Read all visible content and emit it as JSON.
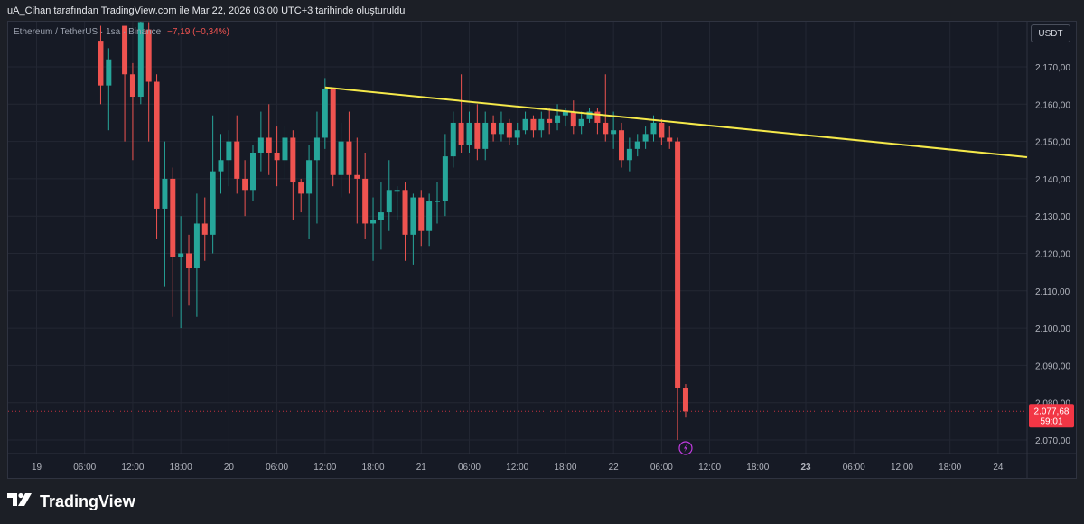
{
  "header": {
    "caption": "uA_Cihan tarafından TradingView.com ile Mar 22, 2026 03:00 UTC+3 tarihinde oluşturuldu"
  },
  "legend": {
    "symbol": "Ethereum / TetherUS · 1sa · Binance",
    "change": "−7,19 (−0,34%)"
  },
  "currency_label": "USDT",
  "price_badge": {
    "price": "2.077,68",
    "countdown": "59:01",
    "color": "#f23645"
  },
  "footer": {
    "brand": "TradingView"
  },
  "colors": {
    "up": "#26a69a",
    "down": "#ef5350",
    "trendline": "#f5e94a",
    "background": "#161a25",
    "grid": "#232733"
  },
  "icons": {
    "alert": "lightning-bolt-icon"
  },
  "chart_data": {
    "type": "candlestick",
    "title": "",
    "ylim": [
      2066,
      2181
    ],
    "y_ticks": [
      "2.170,00",
      "2.160,00",
      "2.150,00",
      "2.140,00",
      "2.130,00",
      "2.120,00",
      "2.110,00",
      "2.100,00",
      "2.090,00",
      "2.080,00",
      "2.070,00"
    ],
    "y_tick_values": [
      2170,
      2160,
      2150,
      2140,
      2130,
      2120,
      2110,
      2100,
      2090,
      2080,
      2070
    ],
    "x_ticks": [
      "19",
      "06:00",
      "12:00",
      "18:00",
      "20",
      "06:00",
      "12:00",
      "18:00",
      "21",
      "06:00",
      "12:00",
      "18:00",
      "22",
      "06:00",
      "12:00",
      "18:00",
      "23",
      "06:00",
      "12:00",
      "18:00",
      "24"
    ],
    "x_tick_hours": [
      0,
      6,
      12,
      18,
      24,
      30,
      36,
      42,
      48,
      54,
      60,
      66,
      72,
      78,
      84,
      90,
      96,
      102,
      108,
      114,
      120
    ],
    "x_tick_bold": [
      "23"
    ],
    "candles": [
      {
        "h": 8,
        "o": 2177,
        "c": 2165,
        "hi": 2181,
        "lo": 2160
      },
      {
        "h": 9,
        "o": 2165,
        "c": 2172,
        "hi": 2175,
        "lo": 2153
      },
      {
        "h": 11,
        "o": 2181,
        "c": 2168,
        "hi": 2181,
        "lo": 2150
      },
      {
        "h": 12,
        "o": 2168,
        "c": 2162,
        "hi": 2171,
        "lo": 2145
      },
      {
        "h": 13,
        "o": 2162,
        "c": 2182,
        "hi": 2184,
        "lo": 2160
      },
      {
        "h": 14,
        "o": 2180,
        "c": 2166,
        "hi": 2182,
        "lo": 2150
      },
      {
        "h": 15,
        "o": 2166,
        "c": 2132,
        "hi": 2168,
        "lo": 2124
      },
      {
        "h": 16,
        "o": 2132,
        "c": 2140,
        "hi": 2150,
        "lo": 2111
      },
      {
        "h": 17,
        "o": 2140,
        "c": 2119,
        "hi": 2143,
        "lo": 2103
      },
      {
        "h": 18,
        "o": 2119,
        "c": 2120,
        "hi": 2130,
        "lo": 2100
      },
      {
        "h": 19,
        "o": 2120,
        "c": 2116,
        "hi": 2125,
        "lo": 2106
      },
      {
        "h": 20,
        "o": 2116,
        "c": 2128,
        "hi": 2136,
        "lo": 2103
      },
      {
        "h": 21,
        "o": 2128,
        "c": 2125,
        "hi": 2135,
        "lo": 2118
      },
      {
        "h": 22,
        "o": 2125,
        "c": 2142,
        "hi": 2157,
        "lo": 2120
      },
      {
        "h": 23,
        "o": 2142,
        "c": 2145,
        "hi": 2152,
        "lo": 2136
      },
      {
        "h": 24,
        "o": 2145,
        "c": 2150,
        "hi": 2153,
        "lo": 2138
      },
      {
        "h": 25,
        "o": 2150,
        "c": 2140,
        "hi": 2157,
        "lo": 2136
      },
      {
        "h": 26,
        "o": 2140,
        "c": 2137,
        "hi": 2145,
        "lo": 2130
      },
      {
        "h": 27,
        "o": 2137,
        "c": 2147,
        "hi": 2149,
        "lo": 2134
      },
      {
        "h": 28,
        "o": 2147,
        "c": 2151,
        "hi": 2158,
        "lo": 2142
      },
      {
        "h": 29,
        "o": 2151,
        "c": 2147,
        "hi": 2160,
        "lo": 2141
      },
      {
        "h": 30,
        "o": 2147,
        "c": 2145,
        "hi": 2154,
        "lo": 2138
      },
      {
        "h": 31,
        "o": 2145,
        "c": 2151,
        "hi": 2154,
        "lo": 2140
      },
      {
        "h": 32,
        "o": 2151,
        "c": 2139,
        "hi": 2153,
        "lo": 2129
      },
      {
        "h": 33,
        "o": 2139,
        "c": 2136,
        "hi": 2140,
        "lo": 2131
      },
      {
        "h": 34,
        "o": 2136,
        "c": 2145,
        "hi": 2149,
        "lo": 2124
      },
      {
        "h": 35,
        "o": 2145,
        "c": 2151,
        "hi": 2158,
        "lo": 2128
      },
      {
        "h": 36,
        "o": 2151,
        "c": 2164,
        "hi": 2167,
        "lo": 2148
      },
      {
        "h": 37,
        "o": 2164,
        "c": 2141,
        "hi": 2164,
        "lo": 2138
      },
      {
        "h": 38,
        "o": 2141,
        "c": 2150,
        "hi": 2155,
        "lo": 2135
      },
      {
        "h": 39,
        "o": 2150,
        "c": 2141,
        "hi": 2158,
        "lo": 2136
      },
      {
        "h": 40,
        "o": 2141,
        "c": 2140,
        "hi": 2151,
        "lo": 2128
      },
      {
        "h": 41,
        "o": 2140,
        "c": 2128,
        "hi": 2147,
        "lo": 2124
      },
      {
        "h": 42,
        "o": 2128,
        "c": 2129,
        "hi": 2135,
        "lo": 2118
      },
      {
        "h": 43,
        "o": 2129,
        "c": 2131,
        "hi": 2139,
        "lo": 2121
      },
      {
        "h": 44,
        "o": 2131,
        "c": 2137,
        "hi": 2145,
        "lo": 2126
      },
      {
        "h": 45,
        "o": 2137,
        "c": 2137,
        "hi": 2138,
        "lo": 2129
      },
      {
        "h": 46,
        "o": 2137,
        "c": 2125,
        "hi": 2139,
        "lo": 2118
      },
      {
        "h": 47,
        "o": 2125,
        "c": 2135,
        "hi": 2136,
        "lo": 2117
      },
      {
        "h": 48,
        "o": 2135,
        "c": 2126,
        "hi": 2137,
        "lo": 2122
      },
      {
        "h": 49,
        "o": 2126,
        "c": 2134,
        "hi": 2136,
        "lo": 2122
      },
      {
        "h": 50,
        "o": 2134,
        "c": 2134,
        "hi": 2139,
        "lo": 2128
      },
      {
        "h": 51,
        "o": 2134,
        "c": 2146,
        "hi": 2152,
        "lo": 2130
      },
      {
        "h": 52,
        "o": 2146,
        "c": 2155,
        "hi": 2158,
        "lo": 2143
      },
      {
        "h": 53,
        "o": 2155,
        "c": 2149,
        "hi": 2168,
        "lo": 2147
      },
      {
        "h": 54,
        "o": 2149,
        "c": 2155,
        "hi": 2158,
        "lo": 2147
      },
      {
        "h": 55,
        "o": 2155,
        "c": 2148,
        "hi": 2160,
        "lo": 2145
      },
      {
        "h": 56,
        "o": 2148,
        "c": 2155,
        "hi": 2158,
        "lo": 2145
      },
      {
        "h": 57,
        "o": 2155,
        "c": 2152,
        "hi": 2157,
        "lo": 2150
      },
      {
        "h": 58,
        "o": 2152,
        "c": 2155,
        "hi": 2158,
        "lo": 2150
      },
      {
        "h": 59,
        "o": 2155,
        "c": 2151,
        "hi": 2156,
        "lo": 2149
      },
      {
        "h": 60,
        "o": 2151,
        "c": 2153,
        "hi": 2155,
        "lo": 2149
      },
      {
        "h": 61,
        "o": 2153,
        "c": 2156,
        "hi": 2158,
        "lo": 2152
      },
      {
        "h": 62,
        "o": 2156,
        "c": 2153,
        "hi": 2157,
        "lo": 2151
      },
      {
        "h": 63,
        "o": 2153,
        "c": 2156,
        "hi": 2158,
        "lo": 2151
      },
      {
        "h": 64,
        "o": 2156,
        "c": 2155,
        "hi": 2159,
        "lo": 2152
      },
      {
        "h": 65,
        "o": 2155,
        "c": 2157,
        "hi": 2160,
        "lo": 2153
      },
      {
        "h": 66,
        "o": 2157,
        "c": 2158,
        "hi": 2159,
        "lo": 2154
      },
      {
        "h": 67,
        "o": 2158,
        "c": 2154,
        "hi": 2161,
        "lo": 2152
      },
      {
        "h": 68,
        "o": 2154,
        "c": 2156,
        "hi": 2158,
        "lo": 2152
      },
      {
        "h": 69,
        "o": 2156,
        "c": 2158,
        "hi": 2159,
        "lo": 2155
      },
      {
        "h": 70,
        "o": 2158,
        "c": 2155,
        "hi": 2159,
        "lo": 2152
      },
      {
        "h": 71,
        "o": 2155,
        "c": 2152,
        "hi": 2168,
        "lo": 2150
      },
      {
        "h": 72,
        "o": 2152,
        "c": 2153,
        "hi": 2158,
        "lo": 2148
      },
      {
        "h": 73,
        "o": 2153,
        "c": 2145,
        "hi": 2155,
        "lo": 2143
      },
      {
        "h": 74,
        "o": 2145,
        "c": 2148,
        "hi": 2151,
        "lo": 2142
      },
      {
        "h": 75,
        "o": 2148,
        "c": 2150,
        "hi": 2152,
        "lo": 2146
      },
      {
        "h": 76,
        "o": 2150,
        "c": 2152,
        "hi": 2154,
        "lo": 2148
      },
      {
        "h": 77,
        "o": 2152,
        "c": 2155,
        "hi": 2157,
        "lo": 2150
      },
      {
        "h": 78,
        "o": 2155,
        "c": 2151,
        "hi": 2156,
        "lo": 2149
      },
      {
        "h": 79,
        "o": 2151,
        "c": 2150,
        "hi": 2154,
        "lo": 2148
      },
      {
        "h": 80,
        "o": 2150,
        "c": 2084,
        "hi": 2151,
        "lo": 2070
      },
      {
        "h": 81,
        "o": 2084,
        "c": 2077.68,
        "hi": 2085,
        "lo": 2076
      }
    ],
    "trendline": {
      "x1": 36,
      "y1": 2164.5,
      "x2": 125,
      "y2": 2145.5
    },
    "last_price": 2077.68,
    "alert_marker_hour": 81
  }
}
